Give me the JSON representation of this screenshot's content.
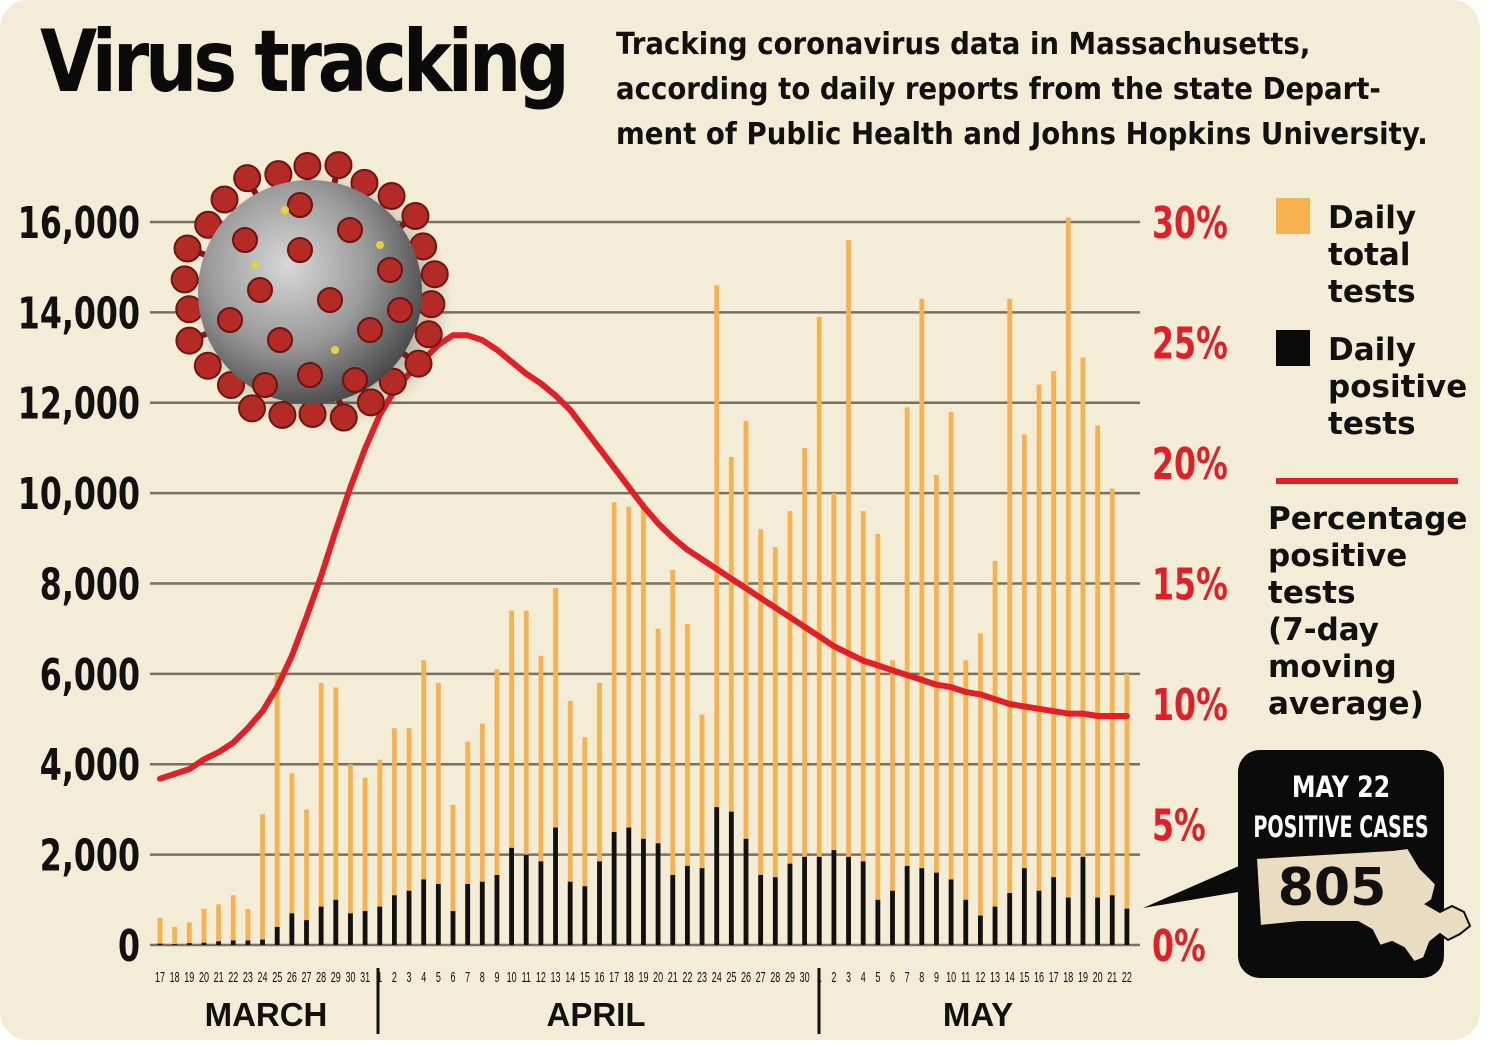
{
  "title": "Virus tracking",
  "subtitle_lines": [
    "Tracking coronavirus data in Massachusetts,",
    "according to daily reports from the state Depart-",
    "ment of Public Health and Johns Hopkins University."
  ],
  "legend": {
    "total": [
      "Daily",
      "total",
      "tests"
    ],
    "positive": [
      "Daily",
      "positive",
      "tests"
    ],
    "pct": [
      "Percentage",
      "positive",
      "tests",
      "(7-day",
      "moving",
      "average)"
    ]
  },
  "callout": {
    "line1": "MAY 22",
    "line2": "POSITIVE CASES",
    "value": "805"
  },
  "months": [
    "MARCH",
    "APRIL",
    "MAY"
  ],
  "colors": {
    "background": "#f3ecd6",
    "total_bar": "#f7b14f",
    "positive_bar": "#111111",
    "pct_line": "#e21f26",
    "grid": "#777064",
    "callout_bg": "#0b0b0b",
    "state_fill": "#e9dcc0"
  },
  "icons": [
    "coronavirus-illustration",
    "massachusetts-map-icon"
  ],
  "chart_data": {
    "type": "bar",
    "x": [
      "17",
      "18",
      "19",
      "20",
      "21",
      "22",
      "23",
      "24",
      "25",
      "26",
      "27",
      "28",
      "29",
      "30",
      "31",
      "1",
      "2",
      "3",
      "4",
      "5",
      "6",
      "7",
      "8",
      "9",
      "10",
      "11",
      "12",
      "13",
      "14",
      "15",
      "16",
      "17",
      "18",
      "19",
      "20",
      "21",
      "22",
      "23",
      "24",
      "25",
      "26",
      "27",
      "28",
      "29",
      "30",
      "1",
      "2",
      "3",
      "4",
      "5",
      "6",
      "7",
      "8",
      "9",
      "10",
      "11",
      "12",
      "13",
      "14",
      "15",
      "16",
      "17",
      "18",
      "19",
      "20",
      "21",
      "22"
    ],
    "y_left": {
      "ticks": [
        "16,000",
        "14,000",
        "12,000",
        "10,000",
        "8,000",
        "6,000",
        "4,000",
        "2,000",
        "0"
      ],
      "min": 0,
      "max": 16000
    },
    "y_right": {
      "ticks": [
        "30%",
        "25%",
        "20%",
        "15%",
        "10%",
        "5%",
        "0%"
      ],
      "min": 0,
      "max": 30
    },
    "grid": true,
    "legend_position": "right",
    "series": [
      {
        "name": "Daily total tests",
        "type": "bar",
        "values": [
          600,
          400,
          500,
          800,
          900,
          1100,
          800,
          2900,
          6000,
          3800,
          3000,
          5800,
          5700,
          4000,
          3700,
          4100,
          4800,
          4800,
          6300,
          5800,
          3100,
          4500,
          4900,
          6100,
          7400,
          7400,
          6400,
          7900,
          5400,
          4600,
          5800,
          9800,
          9700,
          9800,
          7000,
          8300,
          7100,
          5100,
          14600,
          10800,
          11600,
          9200,
          8800,
          9600,
          11000,
          13900,
          10000,
          15600,
          9600,
          9100,
          6300,
          11900,
          14300,
          10400,
          11800,
          6300,
          6900,
          8500,
          14300,
          11300,
          12400,
          12700,
          16100,
          13000,
          11500,
          10100,
          6000
        ]
      },
      {
        "name": "Daily positive tests",
        "type": "bar",
        "values": [
          30,
          20,
          40,
          50,
          80,
          100,
          100,
          120,
          400,
          700,
          550,
          850,
          1000,
          700,
          750,
          850,
          1100,
          1200,
          1450,
          1350,
          750,
          1350,
          1400,
          1550,
          2150,
          2000,
          1850,
          2600,
          1400,
          1300,
          1850,
          2500,
          2600,
          2350,
          2250,
          1550,
          1750,
          1700,
          3050,
          2950,
          2350,
          1550,
          1500,
          1800,
          1950,
          1950,
          2100,
          1950,
          1850,
          1000,
          1200,
          1750,
          1700,
          1600,
          1450,
          1000,
          650,
          850,
          1150,
          1700,
          1200,
          1500,
          1050,
          1950,
          1050,
          1100,
          805
        ]
      },
      {
        "name": "Percentage positive tests (7-day moving average)",
        "type": "line",
        "values": [
          6.9,
          7.1,
          7.3,
          7.7,
          8.0,
          8.4,
          9.0,
          9.7,
          10.7,
          12.0,
          13.6,
          15.3,
          17.2,
          19.0,
          20.6,
          22.0,
          23.0,
          23.7,
          24.3,
          24.9,
          25.3,
          25.3,
          25.1,
          24.7,
          24.2,
          23.7,
          23.3,
          22.8,
          22.2,
          21.4,
          20.6,
          19.8,
          19.0,
          18.2,
          17.5,
          16.9,
          16.4,
          16.0,
          15.6,
          15.2,
          14.8,
          14.4,
          14.0,
          13.6,
          13.2,
          12.8,
          12.4,
          12.1,
          11.8,
          11.6,
          11.4,
          11.2,
          11.0,
          10.8,
          10.7,
          10.5,
          10.4,
          10.2,
          10.0,
          9.9,
          9.8,
          9.7,
          9.6,
          9.6,
          9.5,
          9.5,
          9.5
        ]
      }
    ]
  }
}
